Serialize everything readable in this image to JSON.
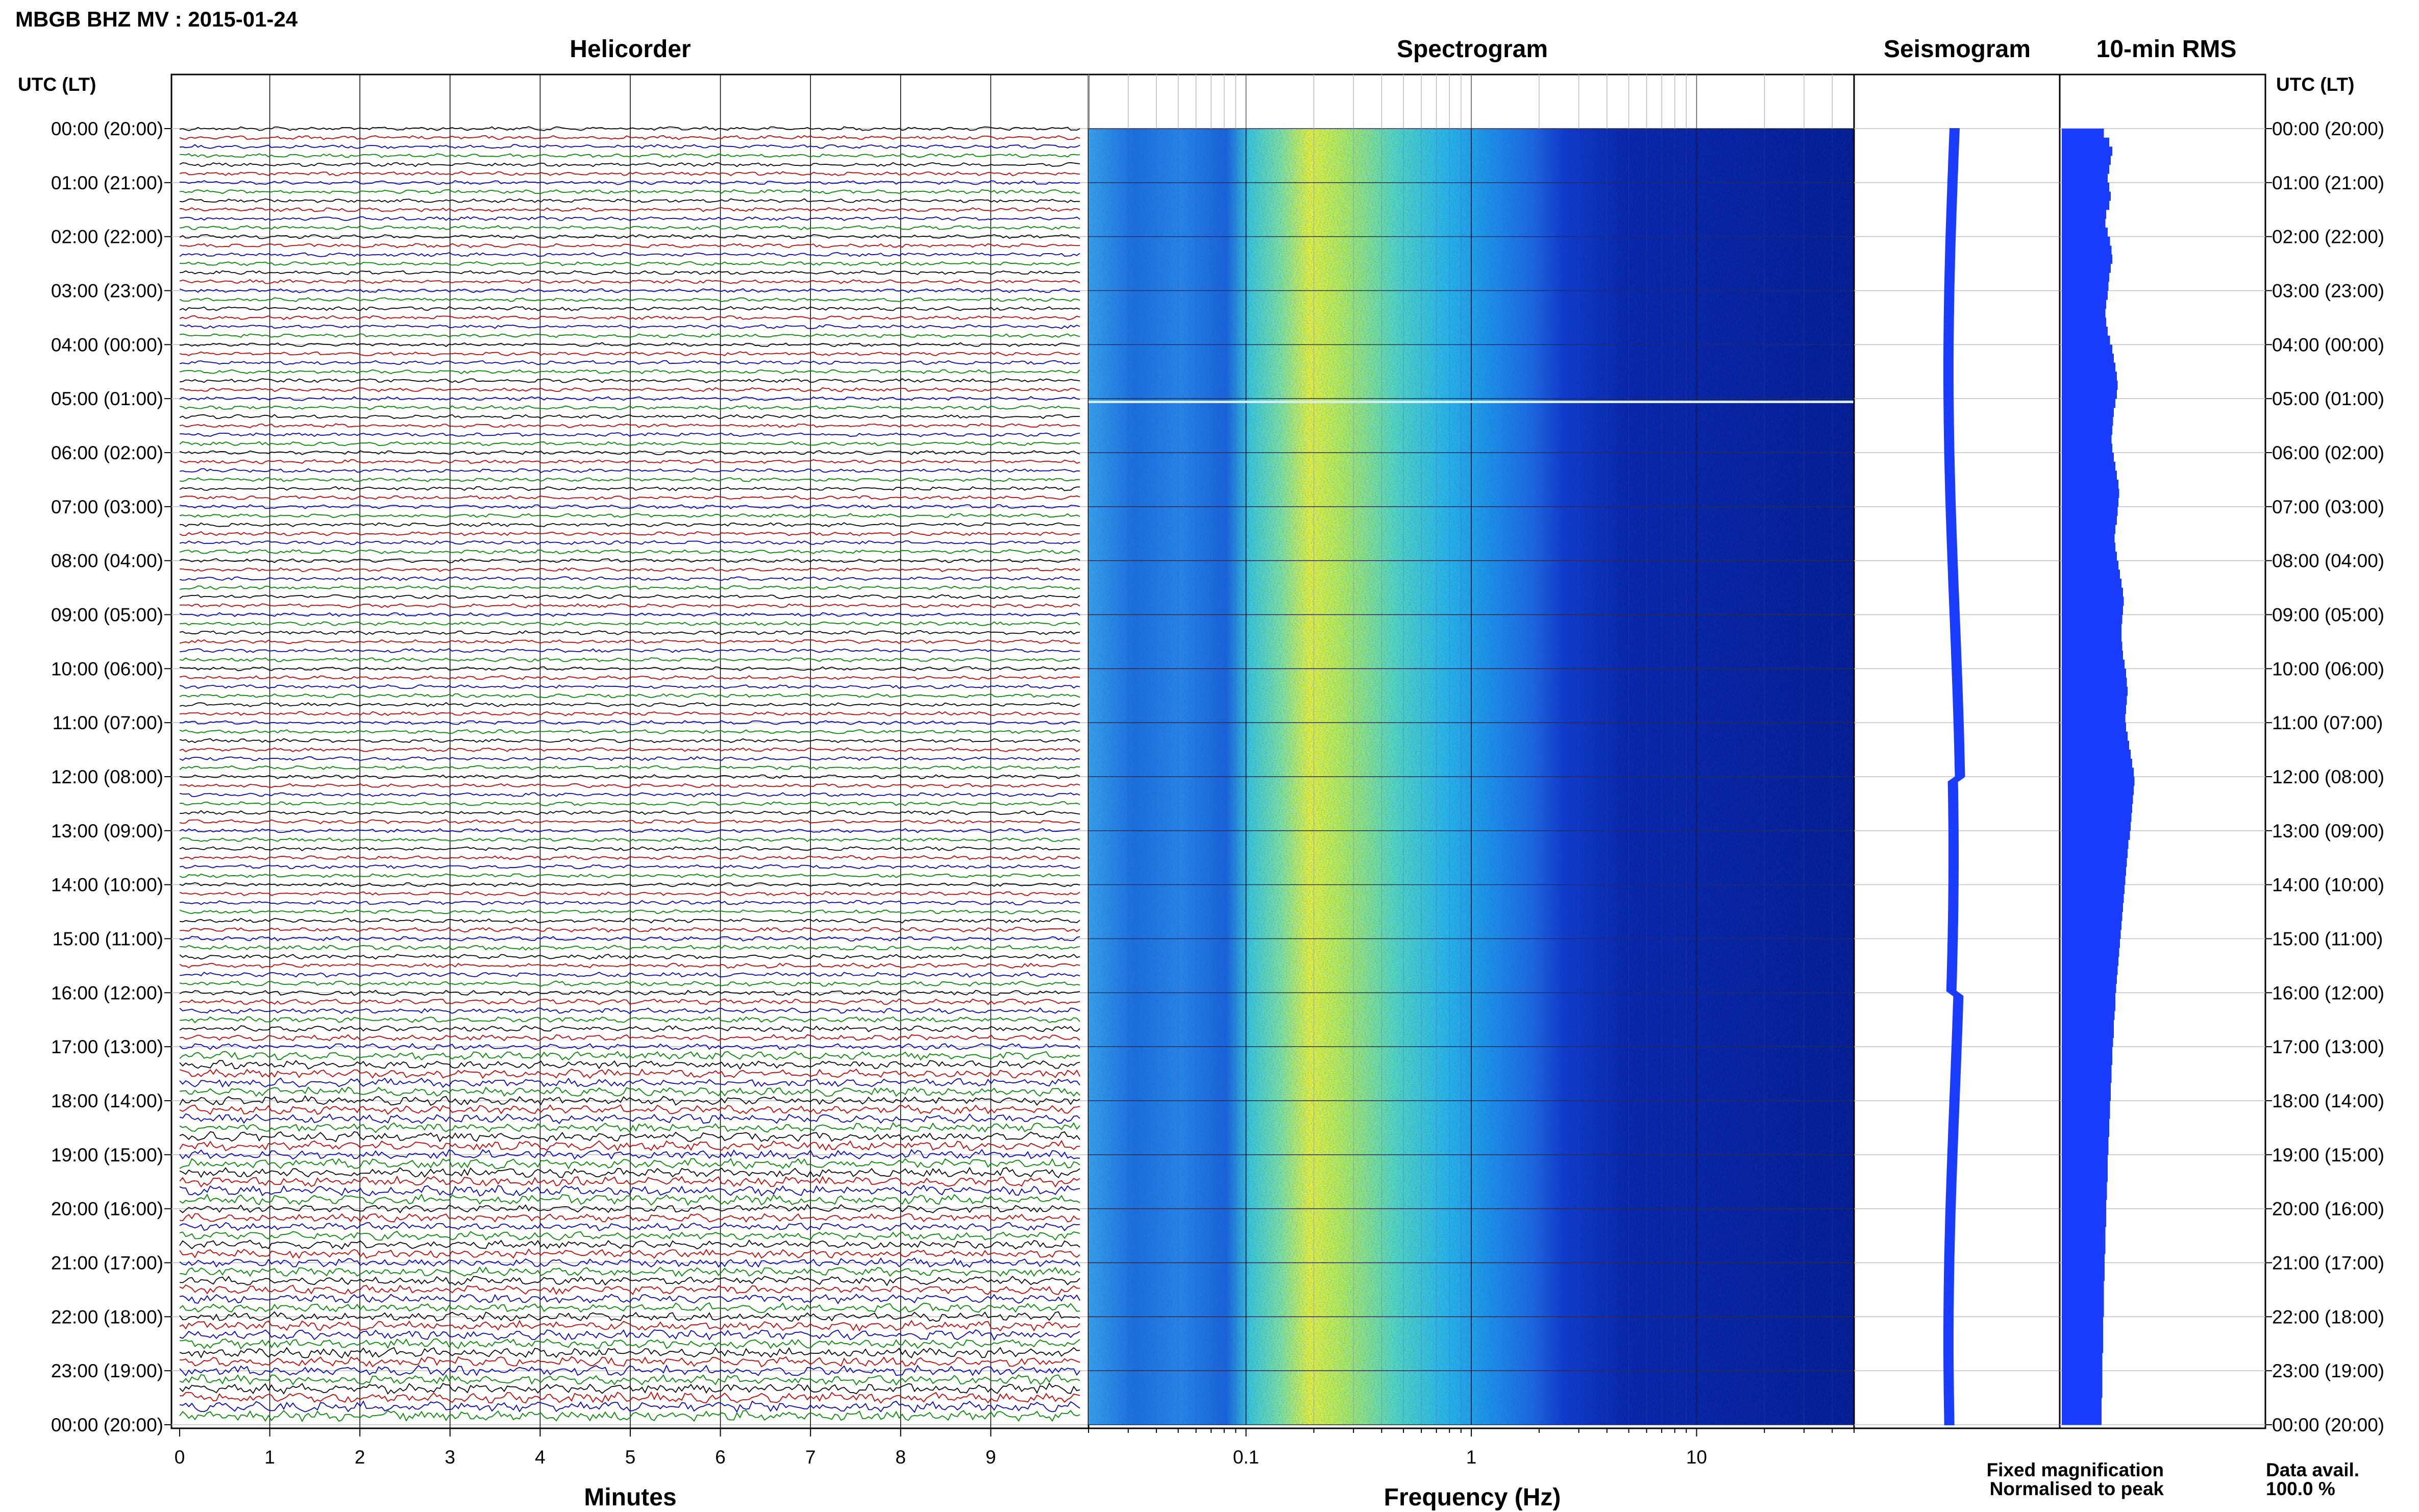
{
  "header": {
    "title": "MBGB BHZ MV : 2015-01-24",
    "utc_label": "UTC (LT)"
  },
  "panels": {
    "helicorder": "Helicorder",
    "spectrogram": "Spectrogram",
    "seismogram": "Seismogram",
    "rms": "10-min RMS"
  },
  "footer": {
    "minutes_label": "Minutes",
    "frequency_label": "Frequency (Hz)",
    "fixed_magnification": "Fixed magnification",
    "normalised_to_peak": "Normalised to peak",
    "data_avail_label": "Data avail.",
    "data_avail_value": "100.0 %"
  },
  "colors": {
    "fixed_magnification": "#0000ee",
    "normalised_to_peak": "#ee0000",
    "trace_cycle": [
      "#000000",
      "#cc0000",
      "#0000cc",
      "#008800"
    ],
    "seismogram": "#1a3cff",
    "rms": "#1a3cff"
  },
  "chart_data": {
    "type": "helicorder-spectrogram",
    "time_ticks": [
      "00:00 (20:00)",
      "01:00 (21:00)",
      "02:00 (22:00)",
      "03:00 (23:00)",
      "04:00 (00:00)",
      "05:00 (01:00)",
      "06:00 (02:00)",
      "07:00 (03:00)",
      "08:00 (04:00)",
      "09:00 (05:00)",
      "10:00 (06:00)",
      "11:00 (07:00)",
      "12:00 (08:00)",
      "13:00 (09:00)",
      "14:00 (10:00)",
      "15:00 (11:00)",
      "16:00 (12:00)",
      "17:00 (13:00)",
      "18:00 (14:00)",
      "19:00 (15:00)",
      "20:00 (16:00)",
      "21:00 (17:00)",
      "22:00 (18:00)",
      "23:00 (19:00)",
      "00:00 (20:00)"
    ],
    "helicorder": {
      "x_ticks": [
        "0",
        "1",
        "2",
        "3",
        "4",
        "5",
        "6",
        "7",
        "8",
        "9"
      ],
      "xlim": [
        0,
        10
      ],
      "traces_per_hour": 6
    },
    "spectrogram": {
      "x_scale": "log",
      "x_ticks": [
        "0.1",
        "1",
        "10"
      ],
      "xlim": [
        0.02,
        50
      ]
    },
    "rms_bar_length": [
      0.55,
      0.62,
      0.66,
      0.64,
      0.62,
      0.6,
      0.62,
      0.64,
      0.62,
      0.58,
      0.57,
      0.6,
      0.63,
      0.65,
      0.66,
      0.64,
      0.62,
      0.61,
      0.6,
      0.58,
      0.57,
      0.58,
      0.6,
      0.63,
      0.66,
      0.68,
      0.7,
      0.72,
      0.73,
      0.72,
      0.7,
      0.68,
      0.67,
      0.66,
      0.65,
      0.66,
      0.68,
      0.7,
      0.72,
      0.74,
      0.75,
      0.74,
      0.73,
      0.72,
      0.7,
      0.69,
      0.7,
      0.72,
      0.74,
      0.76,
      0.78,
      0.8,
      0.81,
      0.8,
      0.79,
      0.78,
      0.78,
      0.79,
      0.8,
      0.82,
      0.84,
      0.85,
      0.86,
      0.85,
      0.84,
      0.83,
      0.84,
      0.86,
      0.88,
      0.9,
      0.92,
      0.94,
      0.95,
      0.94,
      0.93,
      0.92,
      0.91,
      0.9,
      0.89,
      0.87,
      0.86,
      0.85,
      0.84,
      0.83,
      0.82,
      0.81,
      0.8,
      0.79,
      0.78,
      0.77,
      0.76,
      0.75,
      0.74,
      0.73,
      0.72,
      0.71,
      0.7,
      0.7,
      0.69,
      0.68,
      0.68,
      0.67,
      0.66,
      0.66,
      0.65,
      0.65,
      0.64,
      0.64,
      0.63,
      0.63,
      0.62,
      0.62,
      0.61,
      0.61,
      0.6,
      0.6,
      0.6,
      0.59,
      0.59,
      0.58,
      0.58,
      0.58,
      0.57,
      0.57,
      0.57,
      0.56,
      0.56,
      0.56,
      0.55,
      0.55,
      0.55,
      0.55,
      0.54,
      0.54,
      0.54,
      0.54,
      0.53,
      0.53,
      0.53,
      0.53,
      0.53,
      0.52,
      0.52,
      0.52
    ]
  }
}
